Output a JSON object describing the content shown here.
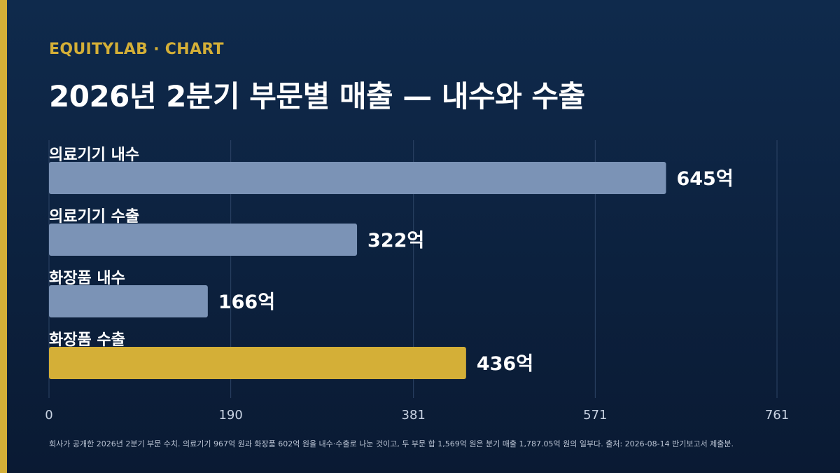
{
  "header": {
    "eyebrow": "EQUITYLAB · CHART",
    "title": "2026년 2분기 부문별 매출 — 내수와 수출"
  },
  "colors": {
    "background": "#0d213f",
    "accent": "#d4af37",
    "bar_default": "#7b93b6",
    "bar_highlight": "#d4af37",
    "text": "#ffffff",
    "grid": "#2d4466"
  },
  "chart_data": {
    "type": "bar",
    "orientation": "horizontal",
    "categories": [
      "의료기기 내수",
      "의료기기 수출",
      "화장품 내수",
      "화장품 수출"
    ],
    "values": [
      645,
      322,
      166,
      436
    ],
    "value_labels": [
      "645억",
      "322억",
      "166억",
      "436억"
    ],
    "highlight_index": 3,
    "xlim": [
      0,
      761
    ],
    "xticks": [
      0,
      190,
      381,
      571,
      761
    ],
    "xtick_labels": [
      "0",
      "190",
      "381",
      "571",
      "761"
    ],
    "grid": true,
    "title": "2026년 2분기 부문별 매출 — 내수와 수출",
    "xlabel": "",
    "ylabel": ""
  },
  "footnote": "회사가 공개한 2026년 2분기 부문 수치. 의료기기 967억 원과 화장품 602억 원을 내수·수출로 나눈 것이고, 두 부문 합 1,569억 원은 분기 매출 1,787.05억 원의 일부다. 출처: 2026-08-14 반기보고서 제출분."
}
